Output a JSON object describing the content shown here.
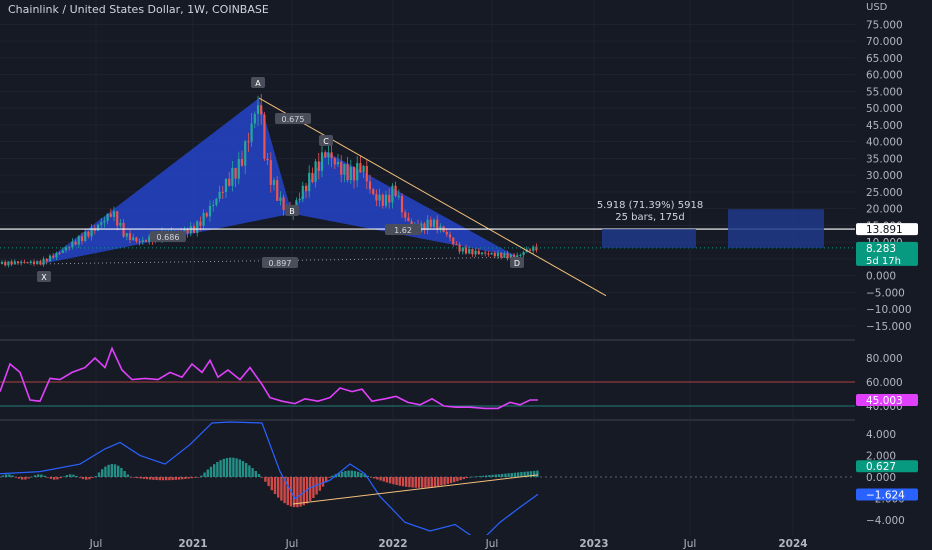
{
  "header": {
    "title": "Chainlink / United States Dollar, 1W, COINBASE",
    "currency": "USD"
  },
  "colors": {
    "background": "#161a25",
    "up_candle": "#26a69a",
    "down_candle": "#ef5350",
    "pattern_fill": "#2444c8",
    "rsi_line": "#e040fb",
    "macd_line": "#2962ff",
    "signal_line": "#ff9800",
    "projection_box": "#1e3a8a",
    "trendline": "#f5c27a",
    "last_price_badge": "#089981",
    "level_line": "#ffffff"
  },
  "time_axis": [
    "Jul",
    "2021",
    "Jul",
    "2022",
    "Jul",
    "2023",
    "Jul",
    "2024"
  ],
  "chart_data": [
    {
      "type": "candlestick",
      "panel": "price",
      "title": "Chainlink / United States Dollar, 1W, COINBASE",
      "yaxis": {
        "ticks": [
          "75.000",
          "70.000",
          "65.000",
          "60.000",
          "55.000",
          "50.000",
          "45.000",
          "40.000",
          "35.000",
          "30.000",
          "25.000",
          "20.000",
          "15.000",
          "10.000",
          "5.000",
          "0.000",
          "−5.000",
          "−10.000",
          "−15.000"
        ],
        "range": [
          -17,
          79
        ]
      },
      "pattern_points": [
        {
          "label": "X",
          "value": 3.5
        },
        {
          "label": "A",
          "value": 53.0
        },
        {
          "label": "B",
          "value": 18.5
        },
        {
          "label": "C",
          "value": 37.0
        },
        {
          "label": "D",
          "value": 5.5
        }
      ],
      "annotations": [
        {
          "label": "0.675"
        },
        {
          "label": "0.686"
        },
        {
          "label": "1.62"
        },
        {
          "label": "0.897"
        }
      ],
      "projection": {
        "line1": "5.918 (71.39%) 5918",
        "line2": "25 bars, 175d"
      },
      "level": {
        "label": "13.891",
        "value": 13.891
      },
      "last_price": {
        "label": "8.283",
        "countdown": "5d 17h",
        "value": 8.283
      }
    },
    {
      "type": "line",
      "panel": "rsi",
      "name": "",
      "yaxis": {
        "ticks": [
          "80.000",
          "60.000",
          "40.000"
        ],
        "range": [
          26,
          95
        ]
      },
      "levels": [
        60,
        40
      ],
      "current": {
        "label": "45.003",
        "value": 45.003
      }
    },
    {
      "type": "histogram",
      "panel": "macd",
      "yaxis": {
        "ticks": [
          "4.000",
          "2.000",
          "0.000",
          "−2.000",
          "−4.000"
        ],
        "range": [
          -5.8,
          5.8
        ]
      },
      "current_histogram": {
        "label": "0.627",
        "value": 0.627
      },
      "current_macd": {
        "label": "−1.624",
        "value": -1.624
      }
    }
  ]
}
